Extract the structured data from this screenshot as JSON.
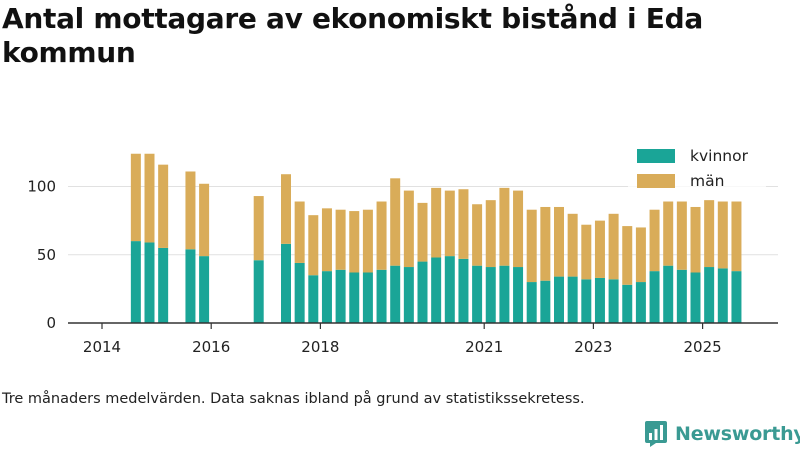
{
  "page": {
    "title": "Antal mottagare av ekonomiskt bistånd i Eda kommun",
    "footnote": "Tre månaders medelvärden. Data saknas ibland på grund av statistikssekretess.",
    "brand": "Newsworthy"
  },
  "colors": {
    "kvinnor": "#1aa597",
    "man": "#d9ac59",
    "axis": "#333333",
    "grid": "#e1e1e1",
    "brand": "#3a9a93"
  },
  "chart_data": {
    "type": "bar",
    "stacked": true,
    "title": "Antal mottagare av ekonomiskt bistånd i Eda kommun",
    "xlabel": "",
    "ylabel": "",
    "ylim": [
      0,
      135
    ],
    "xlim": [
      2013.5,
      2026.2
    ],
    "y_ticks": [
      0,
      50,
      100
    ],
    "x_ticks": [
      2014,
      2016,
      2018,
      2021,
      2023,
      2025
    ],
    "grid": true,
    "legend_position": "top-right",
    "x": [
      2014.62,
      2014.87,
      2015.12,
      2015.62,
      2015.87,
      2016.87,
      2017.37,
      2017.62,
      2017.87,
      2018.12,
      2018.37,
      2018.62,
      2018.87,
      2019.12,
      2019.37,
      2019.62,
      2019.87,
      2020.12,
      2020.37,
      2020.62,
      2020.87,
      2021.12,
      2021.37,
      2021.62,
      2021.87,
      2022.12,
      2022.37,
      2022.62,
      2022.87,
      2023.12,
      2023.37,
      2023.62,
      2023.87,
      2024.12,
      2024.37,
      2024.62,
      2024.87,
      2025.12,
      2025.37,
      2025.62
    ],
    "series": [
      {
        "name": "kvinnor",
        "color": "#1aa597",
        "values": [
          60,
          59,
          55,
          54,
          49,
          46,
          58,
          44,
          35,
          38,
          39,
          37,
          37,
          39,
          42,
          41,
          45,
          48,
          49,
          47,
          42,
          41,
          42,
          41,
          30,
          31,
          34,
          34,
          32,
          33,
          32,
          28,
          30,
          38,
          42,
          39,
          37,
          41,
          40,
          38
        ]
      },
      {
        "name": "män",
        "color": "#d9ac59",
        "values": [
          64,
          65,
          61,
          57,
          53,
          47,
          51,
          45,
          44,
          46,
          44,
          45,
          46,
          50,
          64,
          56,
          43,
          51,
          48,
          51,
          45,
          49,
          57,
          56,
          53,
          54,
          51,
          46,
          40,
          42,
          48,
          43,
          40,
          45,
          47,
          50,
          48,
          49,
          49,
          51
        ]
      }
    ]
  }
}
